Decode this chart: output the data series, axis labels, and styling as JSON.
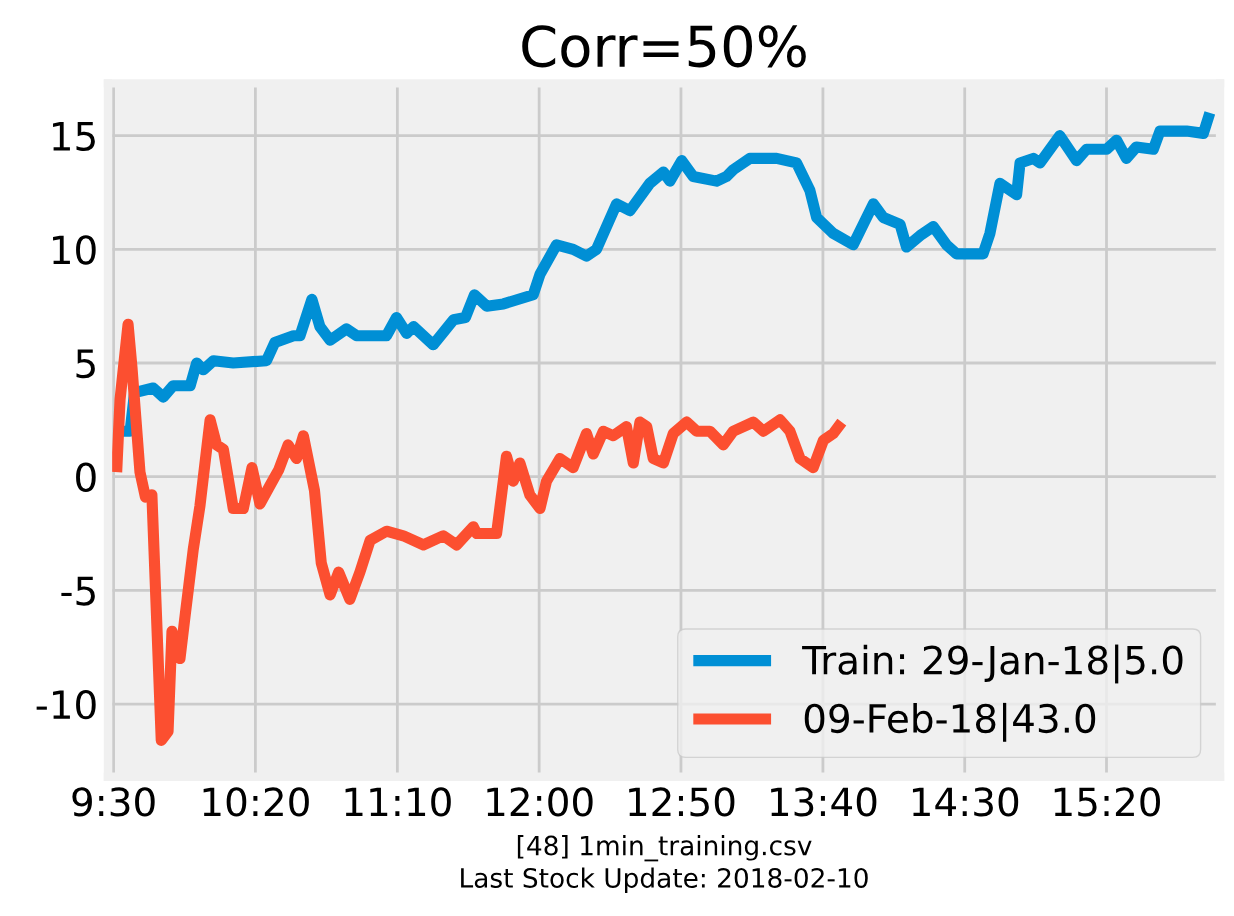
{
  "chart_data": {
    "type": "line",
    "title": "Corr=50%",
    "annotations": [
      "[48] 1min_training.csv",
      "Last Stock Update: 2018-02-10"
    ],
    "xlim": [
      9.467,
      16.0
    ],
    "xticks": [
      {
        "value": 9.5,
        "label": "9:30"
      },
      {
        "value": 10.333,
        "label": "10:20"
      },
      {
        "value": 11.167,
        "label": "11:10"
      },
      {
        "value": 12.0,
        "label": "12:00"
      },
      {
        "value": 12.833,
        "label": "12:50"
      },
      {
        "value": 13.667,
        "label": "13:40"
      },
      {
        "value": 14.5,
        "label": "14:30"
      },
      {
        "value": 15.333,
        "label": "15:20"
      }
    ],
    "ylim": [
      -13.2,
      17.3
    ],
    "yticks": [
      -10,
      -5,
      0,
      5,
      10,
      15
    ],
    "grid": true,
    "legend": "bottom right",
    "line_style": "solid",
    "series": [
      {
        "name": "Train: 29-Jan-18|5.0",
        "color": "#008fd5",
        "x": [
          9.518,
          9.597,
          9.623,
          9.733,
          9.792,
          9.85,
          9.95,
          9.988,
          10.027,
          10.087,
          10.203,
          10.398,
          10.447,
          10.557,
          10.595,
          10.665,
          10.712,
          10.772,
          10.868,
          10.927,
          11.103,
          11.162,
          11.222,
          11.262,
          11.378,
          11.497,
          11.567,
          11.62,
          11.692,
          11.79,
          11.965,
          12.005,
          12.102,
          12.2,
          12.278,
          12.337,
          12.455,
          12.533,
          12.65,
          12.73,
          12.768,
          12.838,
          12.905,
          13.042,
          13.1,
          13.14,
          13.238,
          13.395,
          13.512,
          13.59,
          13.63,
          13.728,
          13.845,
          13.963,
          14.022,
          14.12,
          14.158,
          14.237,
          14.315,
          14.393,
          14.452,
          14.608,
          14.648,
          14.707,
          14.805,
          14.825,
          14.903,
          14.942,
          15.058,
          15.157,
          15.215,
          15.333,
          15.392,
          15.45,
          15.508,
          15.608,
          15.647,
          15.803,
          15.902,
          15.94
        ],
        "values": [
          2.0,
          2.0,
          3.7,
          3.9,
          3.5,
          4.0,
          4.0,
          5.0,
          4.7,
          5.1,
          5.0,
          5.1,
          5.9,
          6.2,
          6.2,
          7.8,
          6.6,
          6.0,
          6.5,
          6.2,
          6.2,
          7.0,
          6.3,
          6.6,
          5.8,
          6.9,
          7.0,
          8.0,
          7.5,
          7.6,
          8.0,
          8.9,
          10.2,
          10.0,
          9.7,
          10.0,
          12.0,
          11.7,
          12.9,
          13.4,
          13.0,
          13.9,
          13.2,
          13.0,
          13.2,
          13.5,
          14.0,
          14.0,
          13.8,
          12.6,
          11.4,
          10.7,
          10.2,
          12.0,
          11.4,
          11.1,
          10.1,
          10.6,
          11.0,
          10.2,
          9.8,
          9.8,
          10.7,
          12.9,
          12.4,
          13.8,
          14.0,
          13.8,
          15.0,
          13.9,
          14.4,
          14.4,
          14.8,
          14.0,
          14.5,
          14.4,
          15.2,
          15.2,
          15.1,
          16.0
        ]
      },
      {
        "name": "09-Feb-18|43.0",
        "color": "#fc4f30",
        "x": [
          9.518,
          9.538,
          9.585,
          9.608,
          9.655,
          9.687,
          9.725,
          9.78,
          9.82,
          9.843,
          9.89,
          9.922,
          9.968,
          10.007,
          10.067,
          10.105,
          10.145,
          10.203,
          10.262,
          10.313,
          10.36,
          10.418,
          10.47,
          10.525,
          10.575,
          10.615,
          10.68,
          10.72,
          10.772,
          10.822,
          10.888,
          10.947,
          11.007,
          11.103,
          11.202,
          11.32,
          11.437,
          11.515,
          11.613,
          11.633,
          11.75,
          11.808,
          11.848,
          11.887,
          11.945,
          12.005,
          12.043,
          12.122,
          12.2,
          12.278,
          12.318,
          12.377,
          12.435,
          12.513,
          12.553,
          12.592,
          12.632,
          12.67,
          12.73,
          12.788,
          12.867,
          12.925,
          13.003,
          13.082,
          13.14,
          13.258,
          13.317,
          13.415,
          13.473,
          13.532,
          13.61,
          13.67,
          13.728,
          13.778
        ],
        "values": [
          0.2,
          3.4,
          6.7,
          4.8,
          0.2,
          -0.9,
          -0.8,
          -11.6,
          -11.2,
          -6.8,
          -8.0,
          -6.0,
          -3.2,
          -1.3,
          2.5,
          1.4,
          1.2,
          -1.4,
          -1.4,
          0.4,
          -1.2,
          -0.4,
          0.3,
          1.4,
          0.8,
          1.8,
          -0.6,
          -3.8,
          -5.2,
          -4.2,
          -5.4,
          -4.2,
          -2.8,
          -2.4,
          -2.6,
          -3.0,
          -2.6,
          -3.0,
          -2.2,
          -2.5,
          -2.5,
          0.9,
          -0.2,
          0.6,
          -0.8,
          -1.4,
          -0.2,
          0.8,
          0.4,
          1.9,
          1.0,
          2.0,
          1.8,
          2.2,
          0.6,
          2.4,
          2.2,
          0.8,
          0.6,
          1.9,
          2.4,
          2.0,
          2.0,
          1.4,
          2.0,
          2.4,
          2.0,
          2.5,
          2.0,
          0.8,
          0.4,
          1.6,
          1.9,
          2.4
        ]
      }
    ]
  }
}
